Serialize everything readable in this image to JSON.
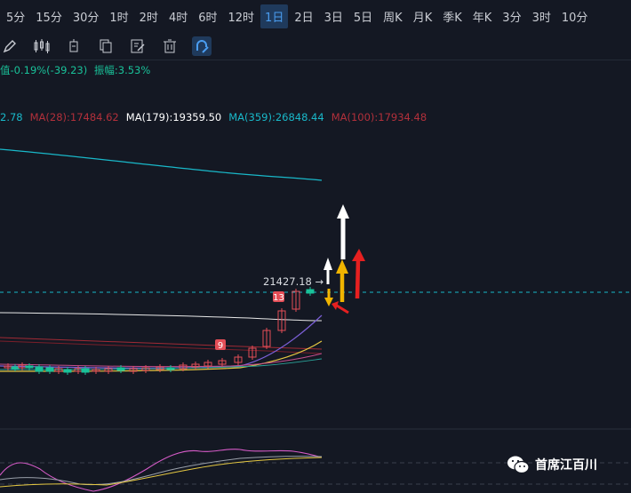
{
  "timeframes": [
    {
      "label": "5分",
      "active": false
    },
    {
      "label": "15分",
      "active": false
    },
    {
      "label": "30分",
      "active": false
    },
    {
      "label": "1时",
      "active": false
    },
    {
      "label": "2时",
      "active": false
    },
    {
      "label": "4时",
      "active": false
    },
    {
      "label": "6时",
      "active": false
    },
    {
      "label": "12时",
      "active": false
    },
    {
      "label": "1日",
      "active": true
    },
    {
      "label": "2日",
      "active": false
    },
    {
      "label": "3日",
      "active": false
    },
    {
      "label": "5日",
      "active": false
    },
    {
      "label": "周K",
      "active": false
    },
    {
      "label": "月K",
      "active": false
    },
    {
      "label": "季K",
      "active": false
    },
    {
      "label": "年K",
      "active": false
    },
    {
      "label": "3分",
      "active": false
    },
    {
      "label": "3时",
      "active": false
    },
    {
      "label": "10分",
      "active": false
    }
  ],
  "toolbar_icons": [
    "pencil-icon",
    "candlestick-icon",
    "indicator-icon",
    "copy-icon",
    "edit-note-icon",
    "delete-icon",
    "magnet-icon"
  ],
  "stats": {
    "change": "值-0.19%(-39.23)",
    "amplitude": "振幅:3.53%"
  },
  "ma": [
    {
      "text": "2.78",
      "color": "#19b8c9"
    },
    {
      "text": "MA(28):17484.62",
      "color": "#b2303b"
    },
    {
      "text": "MA(179):19359.50",
      "color": "#ffffff"
    },
    {
      "text": "MA(359):26848.44",
      "color": "#19b8c9"
    },
    {
      "text": "MA(100):17934.48",
      "color": "#b2303b"
    }
  ],
  "price_label": "21427.18 →",
  "markers": [
    "13",
    "9"
  ],
  "watermark": "首席江百川",
  "colors": {
    "up": "#e44e57",
    "down": "#19c199",
    "accent": "#4a9df0"
  }
}
